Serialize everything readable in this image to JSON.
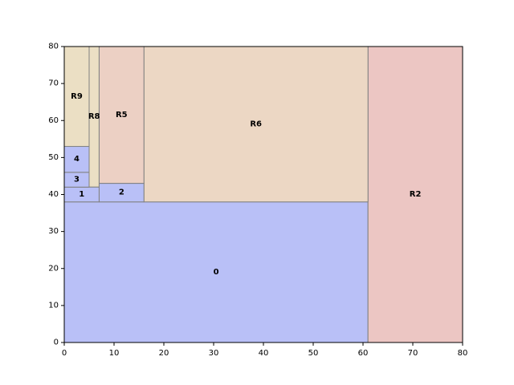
{
  "chart_data": {
    "type": "treemap",
    "title": "",
    "xlabel": "",
    "ylabel": "",
    "xlim": [
      0,
      80
    ],
    "ylim": [
      0,
      80
    ],
    "x_ticks": [
      0,
      10,
      20,
      30,
      40,
      50,
      60,
      70,
      80
    ],
    "y_ticks": [
      0,
      10,
      20,
      30,
      40,
      50,
      60,
      70,
      80
    ],
    "grid": false,
    "colors": {
      "blue": "#b9c0f7",
      "red": "#ecc6c3",
      "peach": "#ecd7c4",
      "salmon": "#ecd0c4",
      "tan": "#ebdfc4",
      "edge": "#808080"
    },
    "rects": [
      {
        "label": "0",
        "x0": 0,
        "x1": 61,
        "y0": 0,
        "y1": 38,
        "color": "#b9c0f7"
      },
      {
        "label": "R2",
        "x0": 61,
        "x1": 80,
        "y0": 0,
        "y1": 80,
        "color": "#ecc6c3"
      },
      {
        "label": "R6",
        "x0": 16,
        "x1": 61,
        "y0": 38,
        "y1": 80,
        "color": "#ecd7c4"
      },
      {
        "label": "R5",
        "x0": 7,
        "x1": 16,
        "y0": 43,
        "y1": 80,
        "color": "#ecd0c4"
      },
      {
        "label": "2",
        "x0": 7,
        "x1": 16,
        "y0": 38,
        "y1": 43,
        "color": "#b9c0f7"
      },
      {
        "label": "R8",
        "x0": 5,
        "x1": 7,
        "y0": 42,
        "y1": 80,
        "color": "#ebdfc4"
      },
      {
        "label": "1",
        "x0": 0,
        "x1": 7,
        "y0": 38,
        "y1": 42,
        "color": "#b9c0f7"
      },
      {
        "label": "3",
        "x0": 0,
        "x1": 5,
        "y0": 42,
        "y1": 46,
        "color": "#b9c0f7"
      },
      {
        "label": "4",
        "x0": 0,
        "x1": 5,
        "y0": 46,
        "y1": 53,
        "color": "#b9c0f7"
      },
      {
        "label": "R9",
        "x0": 0,
        "x1": 5,
        "y0": 53,
        "y1": 80,
        "color": "#ebdfc4"
      }
    ]
  }
}
